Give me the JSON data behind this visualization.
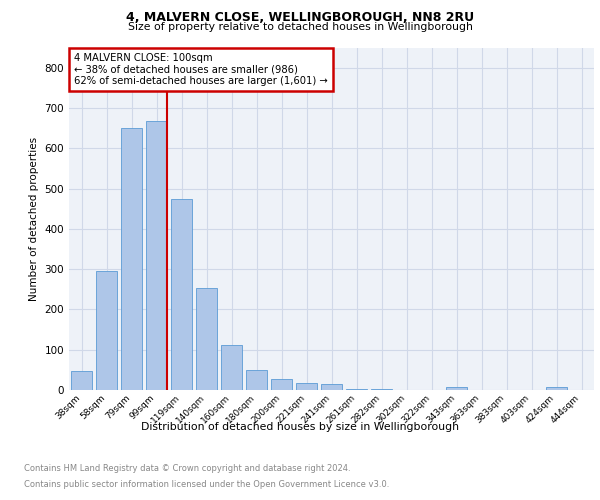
{
  "title1": "4, MALVERN CLOSE, WELLINGBOROUGH, NN8 2RU",
  "title2": "Size of property relative to detached houses in Wellingborough",
  "xlabel": "Distribution of detached houses by size in Wellingborough",
  "ylabel": "Number of detached properties",
  "categories": [
    "38sqm",
    "58sqm",
    "79sqm",
    "99sqm",
    "119sqm",
    "140sqm",
    "160sqm",
    "180sqm",
    "200sqm",
    "221sqm",
    "241sqm",
    "261sqm",
    "282sqm",
    "302sqm",
    "322sqm",
    "343sqm",
    "363sqm",
    "383sqm",
    "403sqm",
    "424sqm",
    "444sqm"
  ],
  "values": [
    47,
    295,
    650,
    668,
    475,
    252,
    112,
    50,
    27,
    18,
    15,
    3,
    3,
    0,
    0,
    7,
    0,
    0,
    0,
    8,
    0
  ],
  "bar_color": "#aec6e8",
  "bar_edge_color": "#5b9bd5",
  "grid_color": "#d0d8e8",
  "bg_color": "#eef2f8",
  "property_bin_index": 3,
  "annotation_title": "4 MALVERN CLOSE: 100sqm",
  "annotation_line1": "← 38% of detached houses are smaller (986)",
  "annotation_line2": "62% of semi-detached houses are larger (1,601) →",
  "annotation_box_color": "#cc0000",
  "footnote1": "Contains HM Land Registry data © Crown copyright and database right 2024.",
  "footnote2": "Contains public sector information licensed under the Open Government Licence v3.0.",
  "ylim": [
    0,
    850
  ],
  "yticks": [
    0,
    100,
    200,
    300,
    400,
    500,
    600,
    700,
    800
  ]
}
